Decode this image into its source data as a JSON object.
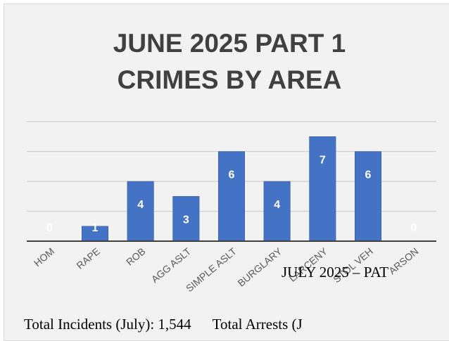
{
  "chart_data": {
    "type": "bar",
    "title": [
      "JUNE 2025 PART 1",
      "CRIMES BY AREA"
    ],
    "categories": [
      "HOM",
      "RAPE",
      "ROB",
      "AGG ASLT",
      "SIMPLE ASLT",
      "BURGLARY",
      "LARCENY",
      "STOL VEH",
      "ARSON"
    ],
    "values": [
      0,
      1,
      4,
      3,
      6,
      4,
      7,
      6,
      0
    ],
    "data_labels": [
      "0",
      "1",
      "4",
      "3",
      "6",
      "4",
      "7",
      "6",
      "0"
    ],
    "ylim": [
      0,
      8
    ],
    "grid": true,
    "legend": "none",
    "colors": {
      "bar": "#4472c4",
      "bar_edge": "#2f5597",
      "label": "#ffffff",
      "grid": "#d0d0d0",
      "axis": "#404040",
      "tick_text": "#595959"
    }
  },
  "document": {
    "heading": "JULY 2025 – PAT",
    "total_incidents": "Total Incidents (July): 1,544",
    "total_arrests": "Total Arrests (J"
  }
}
